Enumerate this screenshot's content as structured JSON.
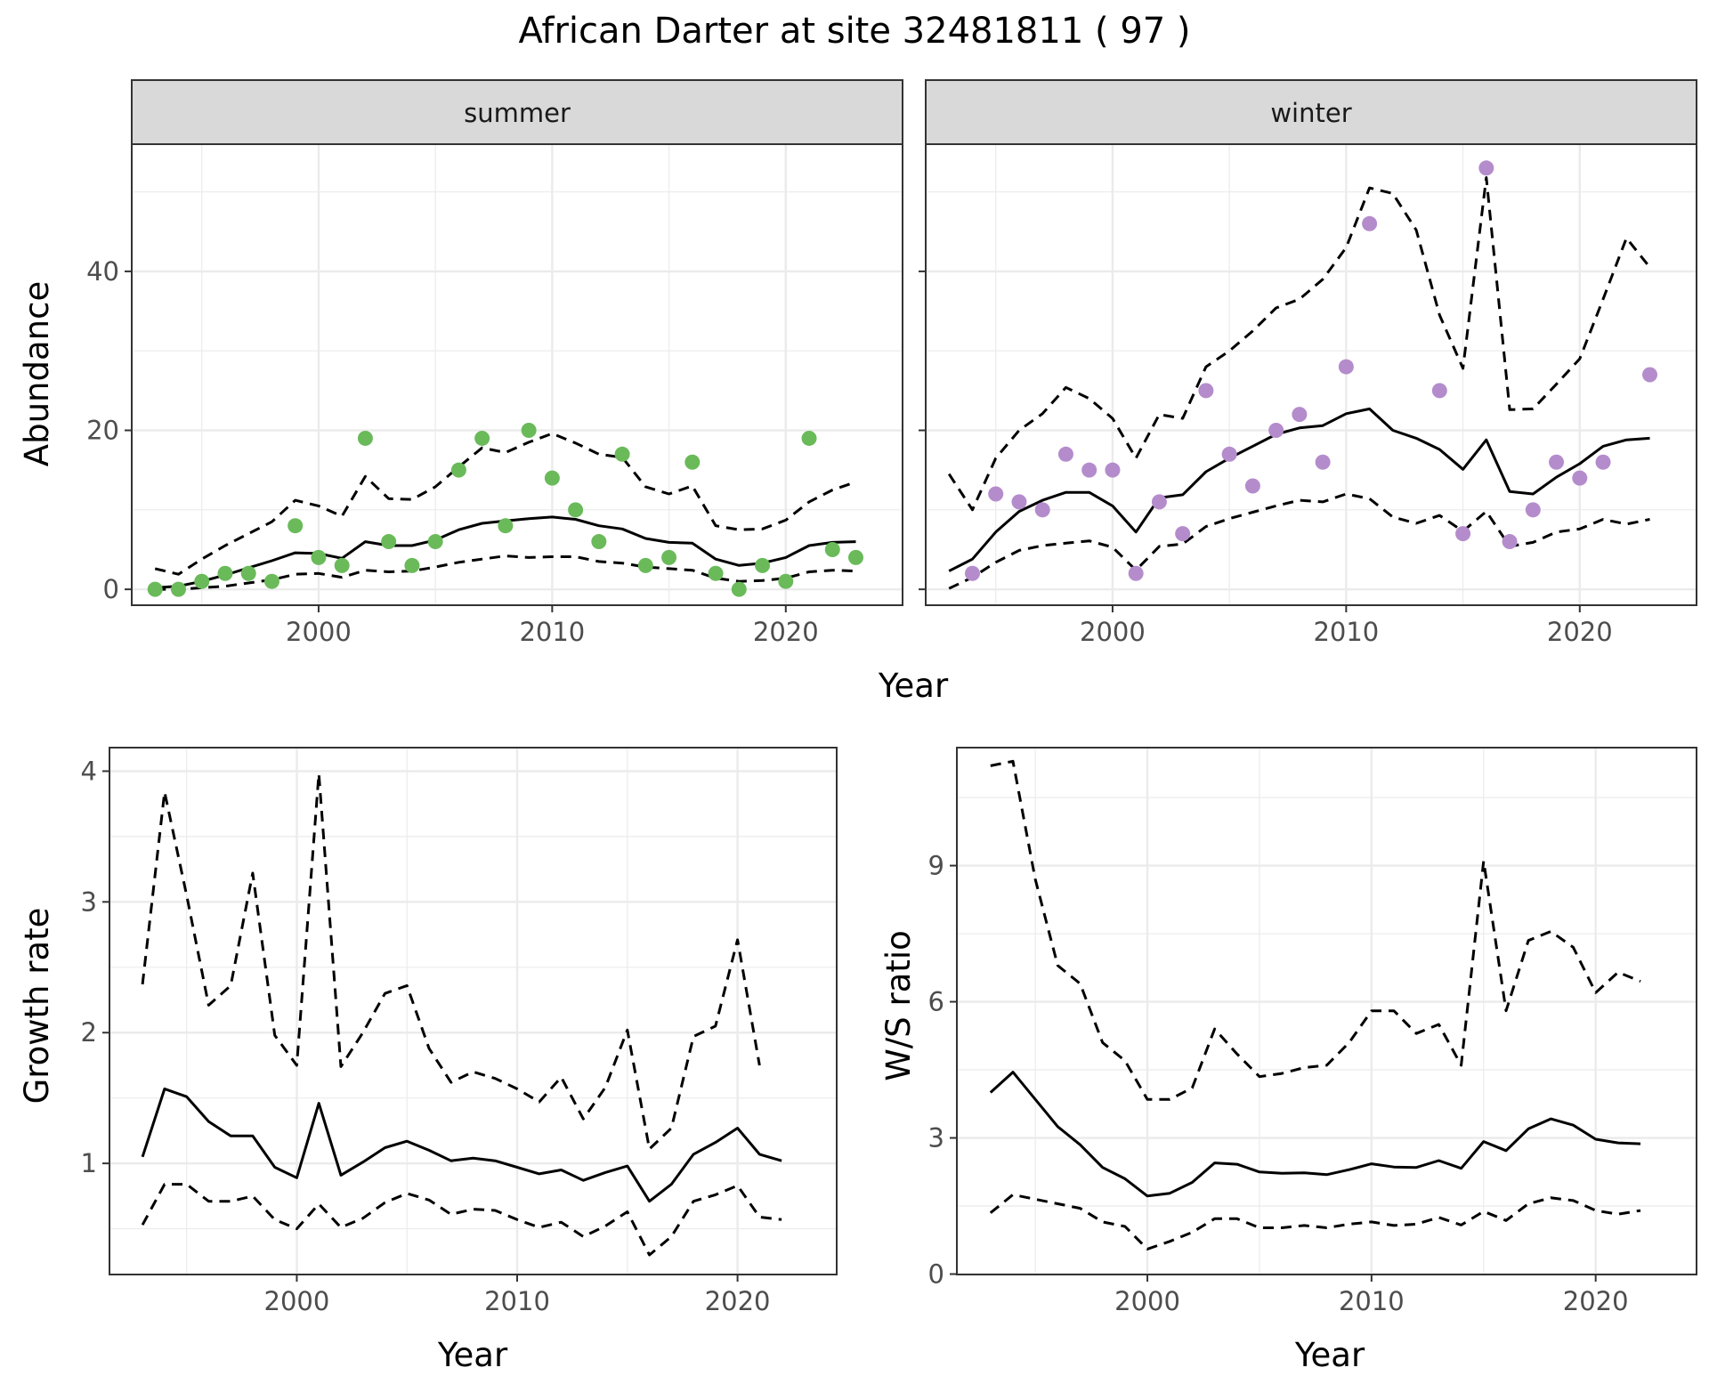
{
  "title": "African Darter at site 32481811 ( 97 )",
  "colors": {
    "summer_points": "#6aba5a",
    "winter_points": "#b48ccc",
    "strip_fill": "#d9d9d9",
    "line": "#000000",
    "grid": "#ebebeb"
  },
  "chart_data": [
    {
      "type": "line",
      "panel": "summer",
      "facet_label": "summer",
      "xlabel": "Year",
      "ylabel": "Abundance",
      "xlim": [
        1992,
        2025
      ],
      "ylim": [
        -2,
        56
      ],
      "x_ticks": [
        2000,
        2010,
        2020
      ],
      "y_ticks": [
        0,
        20,
        40
      ],
      "x": [
        1993,
        1994,
        1995,
        1996,
        1997,
        1998,
        1999,
        2000,
        2001,
        2002,
        2003,
        2004,
        2005,
        2006,
        2007,
        2008,
        2009,
        2010,
        2011,
        2012,
        2013,
        2014,
        2015,
        2016,
        2017,
        2018,
        2019,
        2020,
        2021,
        2022,
        2023
      ],
      "series": [
        {
          "role": "fit",
          "style": "solid",
          "values": [
            0.2,
            0.4,
            1.0,
            1.8,
            2.7,
            3.6,
            4.6,
            4.5,
            3.9,
            6.0,
            5.5,
            5.5,
            6.2,
            7.5,
            8.3,
            8.6,
            8.9,
            9.1,
            8.8,
            8.0,
            7.6,
            6.4,
            5.9,
            5.8,
            3.8,
            3.0,
            3.3,
            4.0,
            5.5,
            5.9,
            6.0
          ]
        },
        {
          "role": "upper",
          "style": "dashed",
          "values": [
            2.6,
            1.9,
            3.8,
            5.5,
            7.0,
            8.5,
            11.2,
            10.5,
            9.2,
            14.2,
            11.4,
            11.3,
            12.9,
            15.4,
            17.8,
            17.2,
            18.5,
            19.6,
            18.4,
            17.0,
            16.6,
            12.9,
            12.0,
            13.0,
            8.0,
            7.5,
            7.6,
            8.7,
            11.0,
            12.5,
            13.5
          ]
        },
        {
          "role": "lower",
          "style": "dashed",
          "values": [
            0.0,
            0.0,
            0.2,
            0.4,
            0.8,
            1.2,
            1.9,
            2.0,
            1.5,
            2.4,
            2.2,
            2.3,
            2.8,
            3.4,
            3.8,
            4.2,
            4.0,
            4.1,
            4.1,
            3.5,
            3.3,
            2.8,
            2.6,
            2.4,
            1.4,
            1.0,
            1.1,
            1.4,
            2.2,
            2.4,
            2.3
          ]
        }
      ],
      "points": {
        "x": [
          1993,
          1994,
          1995,
          1996,
          1997,
          1998,
          1999,
          2000,
          2001,
          2002,
          2003,
          2004,
          2005,
          2006,
          2007,
          2008,
          2009,
          2010,
          2011,
          2012,
          2013,
          2014,
          2015,
          2016,
          2017,
          2018,
          2019,
          2020,
          2021,
          2022,
          2023
        ],
        "y": [
          0,
          0,
          1,
          2,
          2,
          1,
          8,
          4,
          3,
          19,
          6,
          3,
          6,
          15,
          19,
          8,
          20,
          14,
          10,
          6,
          17,
          3,
          4,
          16,
          2,
          0,
          3,
          1,
          19,
          5,
          4
        ]
      }
    },
    {
      "type": "line",
      "panel": "winter",
      "facet_label": "winter",
      "xlabel": "Year",
      "ylabel": "Abundance",
      "xlim": [
        1992,
        2025
      ],
      "ylim": [
        -2,
        56
      ],
      "x_ticks": [
        2000,
        2010,
        2020
      ],
      "y_ticks": [
        0,
        20,
        40
      ],
      "x": [
        1993,
        1994,
        1995,
        1996,
        1997,
        1998,
        1999,
        2000,
        2001,
        2002,
        2003,
        2004,
        2005,
        2006,
        2007,
        2008,
        2009,
        2010,
        2011,
        2012,
        2013,
        2014,
        2015,
        2016,
        2017,
        2018,
        2019,
        2020,
        2021,
        2022,
        2023
      ],
      "series": [
        {
          "role": "fit",
          "style": "solid",
          "values": [
            2.3,
            3.8,
            7.2,
            9.8,
            11.2,
            12.2,
            12.2,
            10.5,
            7.2,
            11.5,
            11.9,
            14.8,
            16.5,
            18.0,
            19.5,
            20.3,
            20.6,
            22.1,
            22.7,
            20.0,
            19.0,
            17.6,
            15.1,
            18.8,
            12.3,
            12.0,
            14.1,
            15.8,
            18.0,
            18.8,
            19.0
          ]
        },
        {
          "role": "upper",
          "style": "dashed",
          "values": [
            14.5,
            10.0,
            16.5,
            20.0,
            22.1,
            25.4,
            24.0,
            21.5,
            16.5,
            22.0,
            21.5,
            28.0,
            30.0,
            32.5,
            35.4,
            36.5,
            39.0,
            43.0,
            50.5,
            49.8,
            45.2,
            34.5,
            27.8,
            51.8,
            22.6,
            22.7,
            25.8,
            29.0,
            36.5,
            44.2,
            40.5
          ]
        },
        {
          "role": "lower",
          "style": "dashed",
          "values": [
            0.1,
            1.5,
            3.4,
            4.9,
            5.5,
            5.8,
            6.1,
            5.3,
            2.4,
            5.4,
            5.7,
            7.9,
            8.9,
            9.7,
            10.5,
            11.2,
            11.0,
            12.0,
            11.4,
            9.1,
            8.3,
            9.3,
            7.3,
            9.8,
            5.4,
            5.9,
            7.2,
            7.6,
            8.8,
            8.2,
            8.8
          ]
        }
      ],
      "points": {
        "x": [
          1994,
          1995,
          1996,
          1997,
          1998,
          1999,
          2000,
          2001,
          2002,
          2003,
          2004,
          2005,
          2006,
          2007,
          2008,
          2009,
          2010,
          2011,
          2014,
          2015,
          2016,
          2017,
          2018,
          2019,
          2020,
          2021,
          2023
        ],
        "y": [
          2,
          12,
          11,
          10,
          17,
          15,
          15,
          2,
          11,
          7,
          25,
          17,
          13,
          20,
          22,
          16,
          28,
          46,
          25,
          7,
          53,
          6,
          10,
          16,
          14,
          16,
          27
        ]
      }
    },
    {
      "type": "line",
      "panel": "growth",
      "xlabel": "Year",
      "ylabel": "Growth rate",
      "xlim": [
        1991.5,
        2024.5
      ],
      "ylim": [
        0.15,
        4.18
      ],
      "x_ticks": [
        2000,
        2010,
        2020
      ],
      "y_ticks": [
        1,
        2,
        3,
        4
      ],
      "x": [
        1993,
        1994,
        1995,
        1996,
        1997,
        1998,
        1999,
        2000,
        2001,
        2002,
        2003,
        2004,
        2005,
        2006,
        2007,
        2008,
        2009,
        2010,
        2011,
        2012,
        2013,
        2014,
        2015,
        2016,
        2017,
        2018,
        2019,
        2020,
        2021,
        2022
      ],
      "series": [
        {
          "role": "fit",
          "style": "solid",
          "values": [
            1.05,
            1.57,
            1.51,
            1.32,
            1.21,
            1.21,
            0.97,
            0.89,
            1.46,
            0.91,
            1.01,
            1.12,
            1.17,
            1.1,
            1.02,
            1.04,
            1.02,
            0.97,
            0.92,
            0.95,
            0.87,
            0.93,
            0.98,
            0.71,
            0.84,
            1.07,
            1.16,
            1.27,
            1.07,
            1.02
          ]
        },
        {
          "role": "upper",
          "style": "dashed",
          "values": [
            2.37,
            3.84,
            3.05,
            2.21,
            2.36,
            3.22,
            1.98,
            1.75,
            3.98,
            1.74,
            2.0,
            2.3,
            2.36,
            1.88,
            1.62,
            1.7,
            1.65,
            1.57,
            1.47,
            1.66,
            1.34,
            1.58,
            2.02,
            1.11,
            1.27,
            1.97,
            2.05,
            2.71,
            1.75,
            null
          ]
        },
        {
          "role": "lower",
          "style": "dashed",
          "values": [
            0.53,
            0.84,
            0.84,
            0.71,
            0.71,
            0.75,
            0.57,
            0.5,
            0.69,
            0.51,
            0.58,
            0.7,
            0.77,
            0.72,
            0.61,
            0.65,
            0.64,
            0.57,
            0.51,
            0.55,
            0.44,
            0.52,
            0.63,
            0.3,
            0.44,
            0.71,
            0.76,
            0.83,
            0.59,
            0.57
          ]
        }
      ]
    },
    {
      "type": "line",
      "panel": "ws_ratio",
      "xlabel": "Year",
      "ylabel": "W/S ratio",
      "xlim": [
        1991.5,
        2024.5
      ],
      "ylim": [
        -0.01,
        11.6
      ],
      "x_ticks": [
        2000,
        2010,
        2020
      ],
      "y_ticks": [
        0,
        3,
        6,
        9
      ],
      "x": [
        1993,
        1994,
        1995,
        1996,
        1997,
        1998,
        1999,
        2000,
        2001,
        2002,
        2003,
        2004,
        2005,
        2006,
        2007,
        2008,
        2009,
        2010,
        2011,
        2012,
        2013,
        2014,
        2015,
        2016,
        2017,
        2018,
        2019,
        2020,
        2021,
        2022
      ],
      "series": [
        {
          "role": "fit",
          "style": "solid",
          "values": [
            4.0,
            4.45,
            3.85,
            3.25,
            2.85,
            2.35,
            2.1,
            1.72,
            1.78,
            2.02,
            2.45,
            2.42,
            2.25,
            2.22,
            2.23,
            2.19,
            2.3,
            2.43,
            2.36,
            2.35,
            2.5,
            2.33,
            2.92,
            2.72,
            3.2,
            3.42,
            3.28,
            2.97,
            2.89,
            2.87
          ]
        },
        {
          "role": "upper",
          "style": "dashed",
          "values": [
            11.2,
            11.3,
            8.7,
            6.8,
            6.4,
            5.1,
            4.7,
            3.85,
            3.85,
            4.1,
            5.4,
            4.85,
            4.35,
            4.42,
            4.55,
            4.6,
            5.1,
            5.8,
            5.8,
            5.3,
            5.5,
            4.6,
            9.1,
            5.8,
            7.35,
            7.55,
            7.2,
            6.2,
            6.65,
            6.45
          ]
        },
        {
          "role": "lower",
          "style": "dashed",
          "values": [
            1.35,
            1.75,
            1.65,
            1.55,
            1.45,
            1.15,
            1.05,
            0.55,
            0.72,
            0.92,
            1.22,
            1.22,
            1.02,
            1.02,
            1.07,
            1.02,
            1.1,
            1.15,
            1.07,
            1.1,
            1.25,
            1.08,
            1.38,
            1.18,
            1.55,
            1.68,
            1.62,
            1.4,
            1.32,
            1.4
          ]
        }
      ]
    }
  ]
}
